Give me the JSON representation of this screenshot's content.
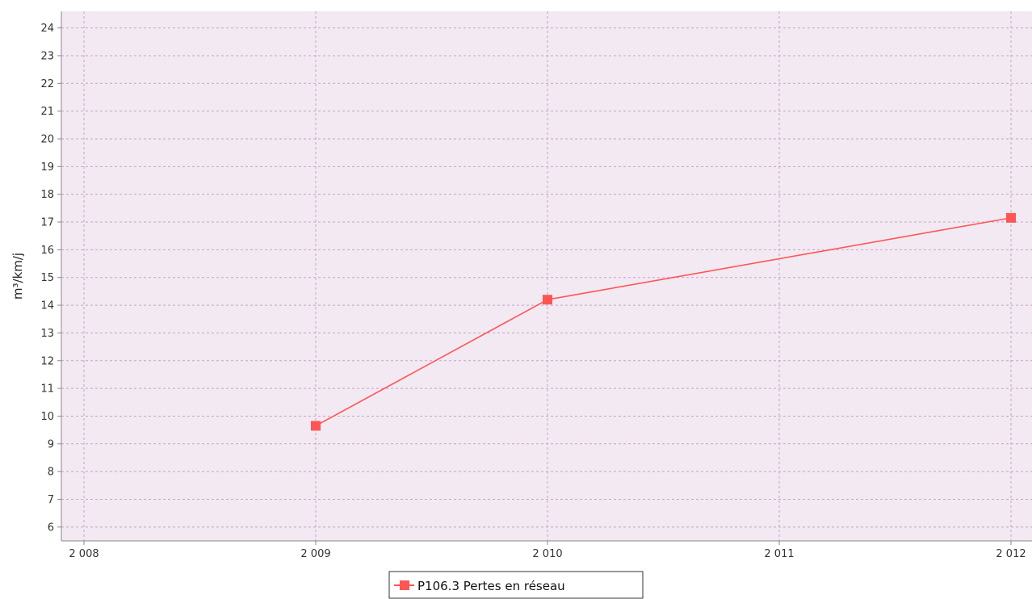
{
  "chart_data": {
    "type": "line",
    "title": "",
    "xlabel": "",
    "ylabel": "m³/km/j",
    "x_ticks": [
      "2 008",
      "2 009",
      "2 010",
      "2 011",
      "2 012"
    ],
    "x_tick_values": [
      2008,
      2009,
      2010,
      2011,
      2012
    ],
    "xlim": [
      2008,
      2012
    ],
    "ylim": [
      5.5,
      24.6
    ],
    "y_ticks": [
      6,
      7,
      8,
      9,
      10,
      11,
      12,
      13,
      14,
      15,
      16,
      17,
      18,
      19,
      20,
      21,
      22,
      23,
      24
    ],
    "grid": true,
    "legend_position": "bottom-center",
    "series": [
      {
        "name": "P106.3 Pertes en réseau",
        "color": "#ff5555",
        "marker": "square",
        "x": [
          2009,
          2010,
          2012
        ],
        "y": [
          9.65,
          14.2,
          17.15
        ]
      }
    ],
    "colors": {
      "plot_background": "#f2e9f2",
      "grid": "#c9a3c9",
      "axis": "#888888"
    }
  }
}
